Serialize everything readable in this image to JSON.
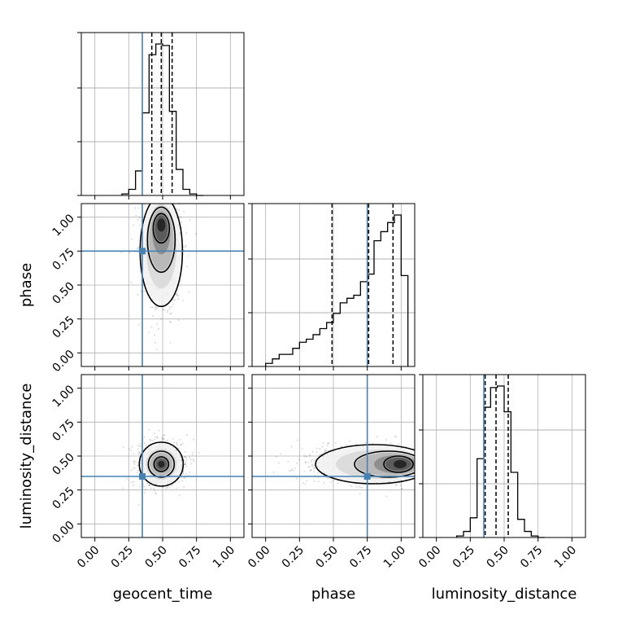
{
  "chart_data": {
    "type": "corner",
    "parameters": [
      "geocent_time",
      "phase",
      "luminosity_distance"
    ],
    "axis_labels": [
      "geocent_time",
      "phase",
      "luminosity_distance"
    ],
    "ticks": [
      0.0,
      0.25,
      0.5,
      0.75,
      1.0
    ],
    "tick_labels": [
      "0.00",
      "0.25",
      "0.50",
      "0.75",
      "1.00"
    ],
    "xlim": [
      -0.1,
      1.1
    ],
    "grid": true,
    "truth_color": "#4682b4",
    "truths": [
      0.35,
      0.75,
      0.35
    ],
    "quantiles": [
      [
        0.42,
        0.49,
        0.57
      ],
      [
        0.49,
        0.76,
        0.94
      ],
      [
        0.36,
        0.44,
        0.53
      ]
    ],
    "histograms": [
      {
        "parameter": "geocent_time",
        "bin_edges": [
          0.2,
          0.25,
          0.3,
          0.35,
          0.4,
          0.45,
          0.5,
          0.55,
          0.6,
          0.65,
          0.7,
          0.75,
          0.8
        ],
        "counts": [
          0.01,
          0.04,
          0.16,
          0.54,
          0.92,
          0.99,
          0.98,
          0.55,
          0.17,
          0.04,
          0.01,
          0.0
        ]
      },
      {
        "parameter": "phase",
        "bin_edges": [
          0.0,
          0.05,
          0.1,
          0.15,
          0.2,
          0.25,
          0.3,
          0.35,
          0.4,
          0.45,
          0.5,
          0.55,
          0.6,
          0.65,
          0.7,
          0.75,
          0.8,
          0.85,
          0.9,
          0.95,
          1.0,
          1.05
        ],
        "counts": [
          0.02,
          0.05,
          0.08,
          0.08,
          0.12,
          0.16,
          0.18,
          0.21,
          0.25,
          0.29,
          0.35,
          0.42,
          0.45,
          0.47,
          0.56,
          0.61,
          0.83,
          0.89,
          0.95,
          1.0,
          0.6
        ]
      },
      {
        "parameter": "luminosity_distance",
        "bin_edges": [
          0.15,
          0.2,
          0.25,
          0.3,
          0.35,
          0.4,
          0.45,
          0.5,
          0.55,
          0.6,
          0.65,
          0.7,
          0.75,
          0.8
        ],
        "counts": [
          0.01,
          0.04,
          0.13,
          0.52,
          0.86,
          0.99,
          1.0,
          0.83,
          0.43,
          0.12,
          0.04,
          0.01,
          0.0
        ]
      }
    ],
    "scatter_panels": [
      {
        "x": "geocent_time",
        "y": "phase",
        "center": [
          0.49,
          0.75
        ]
      },
      {
        "x": "geocent_time",
        "y": "luminosity_distance",
        "center": [
          0.49,
          0.44
        ]
      },
      {
        "x": "phase",
        "y": "luminosity_distance",
        "center": [
          0.8,
          0.44
        ]
      }
    ]
  }
}
